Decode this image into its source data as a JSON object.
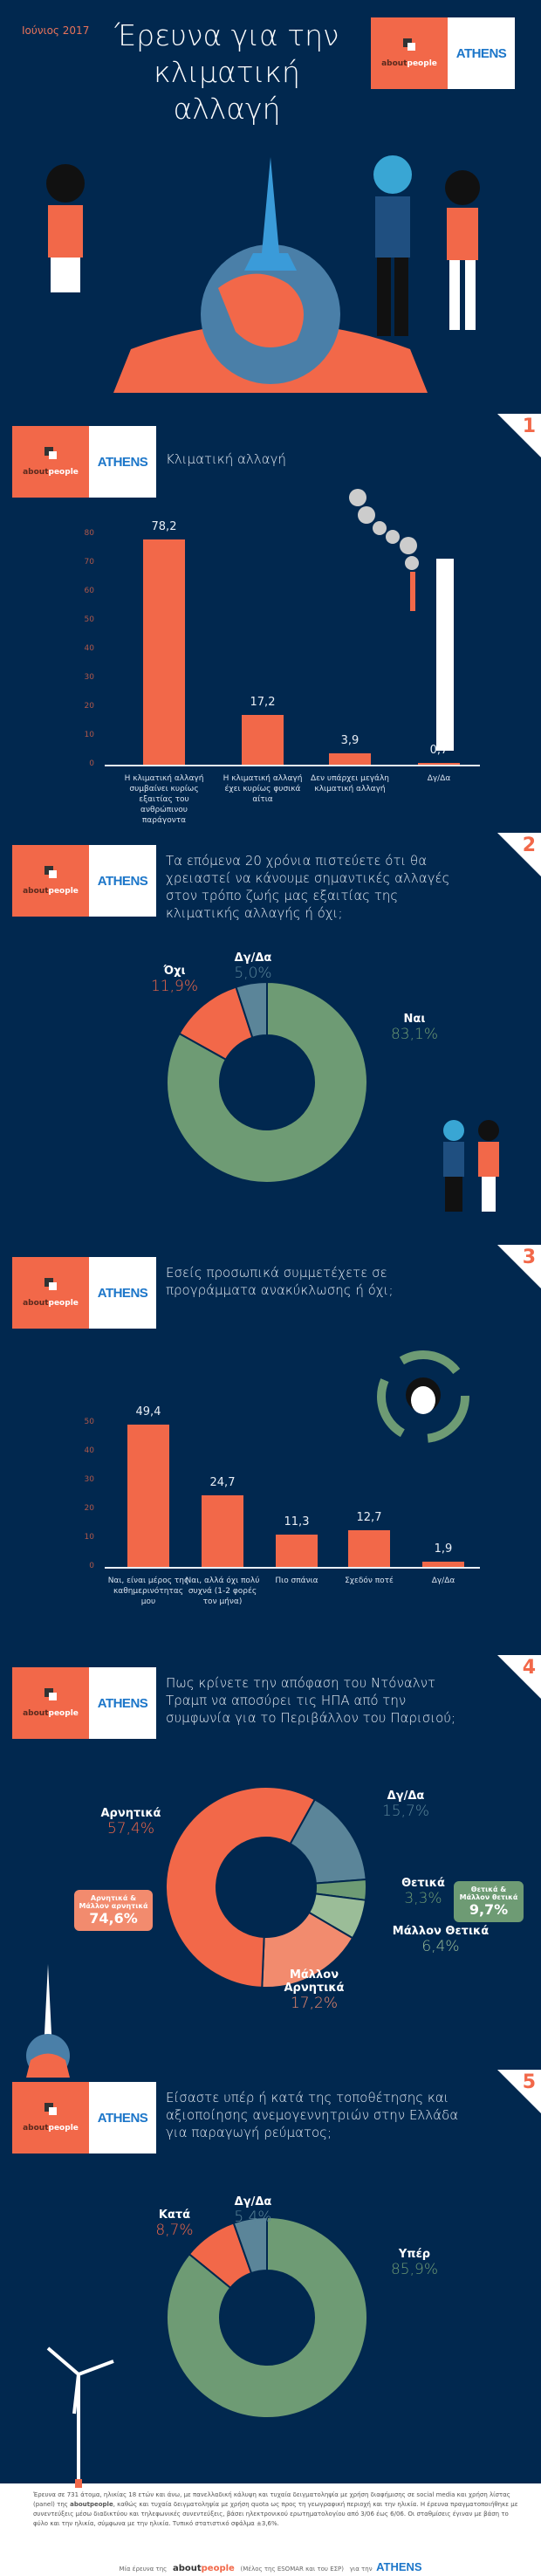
{
  "header": {
    "date": "Ιούνιος 2017",
    "title_line1": "Έρευνα για την",
    "title_line2": "κλιματική αλλαγή"
  },
  "logo": {
    "aboutpeople_a": "about",
    "aboutpeople_b": "people",
    "athens": "ATHENS"
  },
  "colors": {
    "navy": "#01284f",
    "orange": "#f26849",
    "light_orange": "#f28b6e",
    "green": "#6e9b74",
    "light_green": "#9bbd98",
    "slate": "#5b8599"
  },
  "sections": [
    {
      "number": "1",
      "question": "Κλιματική αλλαγή"
    },
    {
      "number": "2",
      "question": "Τα επόμενα 20 χρόνια πιστεύετε ότι θα χρειαστεί να κάνουμε σημαντικές αλλαγές στον τρόπο ζωής μας εξαιτίας της κλιματικής αλλαγής ή όχι;"
    },
    {
      "number": "3",
      "question": "Εσείς προσωπικά συμμετέχετε σε προγράμματα ανακύκλωσης ή όχι;"
    },
    {
      "number": "4",
      "question": "Πως κρίνετε την απόφαση του Ντόναλντ Τραμπ να αποσύρει τις ΗΠΑ από την συμφωνία για το Περιβάλλον του Παρισιού;"
    },
    {
      "number": "5",
      "question": "Είσαστε υπέρ ή κατά της τοποθέτησης και αξιοποίησης ανεμογεννητριών στην Ελλάδα για παραγωγή ρεύματος;"
    }
  ],
  "chart_data": [
    {
      "type": "bar",
      "title": "Κλιματική αλλαγή",
      "ylim": [
        0,
        80
      ],
      "yticks": [
        "0",
        "10",
        "20",
        "30",
        "40",
        "50",
        "60",
        "70",
        "80"
      ],
      "categories": [
        "Η κλιματική αλλαγή συμβαίνει κυρίως εξαιτίας του ανθρώπινου παράγοντα",
        "Η κλιματική αλλαγή έχει κυρίως φυσικά αίτια",
        "Δεν υπάρχει μεγάλη κλιματική αλλαγή",
        "Δγ/Δα"
      ],
      "values": [
        78.2,
        17.2,
        3.9,
        0.7
      ],
      "labels": [
        "78,2",
        "17,2",
        "3,9",
        "0,7"
      ]
    },
    {
      "type": "pie",
      "slices": [
        {
          "name": "Ναι",
          "value": 83.1,
          "label": "83,1%",
          "color": "#6e9b74"
        },
        {
          "name": "Όχι",
          "value": 11.9,
          "label": "11,9%",
          "color": "#f26849"
        },
        {
          "name": "Δγ/Δα",
          "value": 5.0,
          "label": "5,0%",
          "color": "#5b8599"
        }
      ]
    },
    {
      "type": "bar",
      "ylim": [
        0,
        50
      ],
      "yticks": [
        "0",
        "10",
        "20",
        "30",
        "40",
        "50"
      ],
      "categories": [
        "Ναι, είναι μέρος της καθημερινότητας μου",
        "Ναι, αλλά όχι πολύ συχνά (1-2 φορές τον μήνα)",
        "Πιο σπάνια",
        "Σχεδόν ποτέ",
        "Δγ/Δα"
      ],
      "values": [
        49.4,
        24.7,
        11.3,
        12.7,
        1.9
      ],
      "labels": [
        "49,4",
        "24,7",
        "11,3",
        "12,7",
        "1,9"
      ]
    },
    {
      "type": "pie",
      "slices": [
        {
          "name": "Δγ/Δα",
          "value": 15.7,
          "label": "15,7%",
          "color": "#5b8599"
        },
        {
          "name": "Θετικά",
          "value": 3.3,
          "label": "3,3%",
          "color": "#6e9b74"
        },
        {
          "name": "Μάλλον Θετικά",
          "value": 6.4,
          "label": "6,4%",
          "color": "#9bbd98"
        },
        {
          "name": "Μάλλον Αρνητικά",
          "value": 17.2,
          "label": "17,2%",
          "color": "#f28b6e"
        },
        {
          "name": "Αρνητικά",
          "value": 57.4,
          "label": "57,4%",
          "color": "#f26849"
        }
      ],
      "totals": [
        {
          "name": "Αρνητικά & Μάλλον αρνητικά",
          "label": "74,6%"
        },
        {
          "name": "Θετικά & Μάλλον θετικά",
          "label": "9,7%"
        }
      ]
    },
    {
      "type": "pie",
      "slices": [
        {
          "name": "Υπέρ",
          "value": 85.9,
          "label": "85,9%",
          "color": "#6e9b74"
        },
        {
          "name": "Κατά",
          "value": 8.7,
          "label": "8,7%",
          "color": "#f26849"
        },
        {
          "name": "Δγ/Δα",
          "value": 5.4,
          "label": "5,4%",
          "color": "#5b8599"
        }
      ]
    }
  ],
  "footer": {
    "note_a": "Έρευνα σε 731 άτομα, ηλικίας 18 ετών και άνω, με πανελλαδική κάλυψη και τυχαία δειγματοληψία με χρήση διαφήμισης σε social media και χρήση λίστας (panel) της ",
    "note_bold": "aboutpeople",
    "note_b": ", καθώς και τυχαία δειγματοληψία με χρήση quota ως προς τη γεωγραφική περιοχή και την ηλικία. Η έρευνα πραγματοποιήθηκε με συνεντεύξεις μέσω διαδικτύου και τηλεφωνικές συνεντεύξεις, βάσει ηλεκτρονικού ερωτηματολογίου από 3/06 έως 6/06. Οι σταθμίσεις έγιναν με βάση το φύλο και την ηλικία, σύμφωνα με την ηλικία. Τυπικό στατιστικό σφάλμα ±3,6%.",
    "credit_a": "Μία έρευνα της",
    "credit_b": "(Μέλος της ESOMAR και του ΕΣΡ)",
    "credit_c": "για την"
  }
}
